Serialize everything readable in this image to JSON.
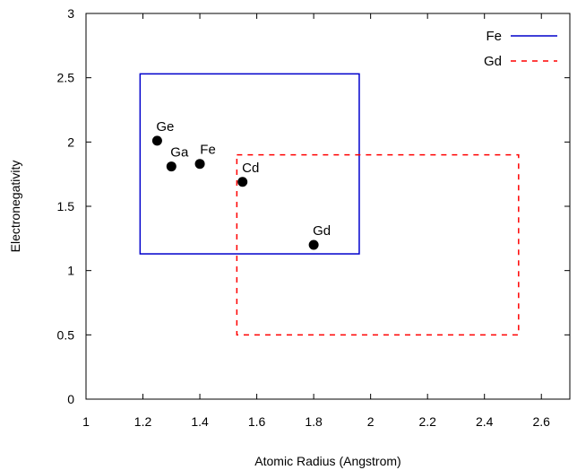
{
  "chart_data": {
    "type": "scatter",
    "title": "",
    "xlabel": "Atomic Radius (Angstrom)",
    "ylabel": "Electronegativity",
    "xlim": [
      1,
      2.7
    ],
    "ylim": [
      0,
      3
    ],
    "xticks": [
      1,
      1.2,
      1.4,
      1.6,
      1.8,
      2,
      2.2,
      2.4,
      2.6
    ],
    "xtick_labels": [
      "1",
      "1.2",
      "1.4",
      "1.6",
      "1.8",
      "2",
      "2.2",
      "2.4",
      "2.6"
    ],
    "yticks": [
      0,
      0.5,
      1,
      1.5,
      2,
      2.5,
      3
    ],
    "ytick_labels": [
      "0",
      "0.5",
      "1",
      "1.5",
      "2",
      "2.5",
      "3"
    ],
    "grid": false,
    "legend_position": "top-right",
    "points": [
      {
        "label": "Ge",
        "x": 1.25,
        "y": 2.01
      },
      {
        "label": "Ga",
        "x": 1.3,
        "y": 1.81
      },
      {
        "label": "Fe",
        "x": 1.4,
        "y": 1.83
      },
      {
        "label": "Cd",
        "x": 1.55,
        "y": 1.69
      },
      {
        "label": "Gd",
        "x": 1.8,
        "y": 1.2
      }
    ],
    "series": [
      {
        "name": "Fe",
        "style": "solid",
        "color": "#0000cc",
        "x_range": [
          1.19,
          1.96
        ],
        "y_range": [
          1.13,
          2.53
        ]
      },
      {
        "name": "Gd",
        "style": "dashed",
        "color": "#ff0000",
        "x_range": [
          1.53,
          2.52
        ],
        "y_range": [
          0.5,
          1.9
        ]
      }
    ]
  }
}
